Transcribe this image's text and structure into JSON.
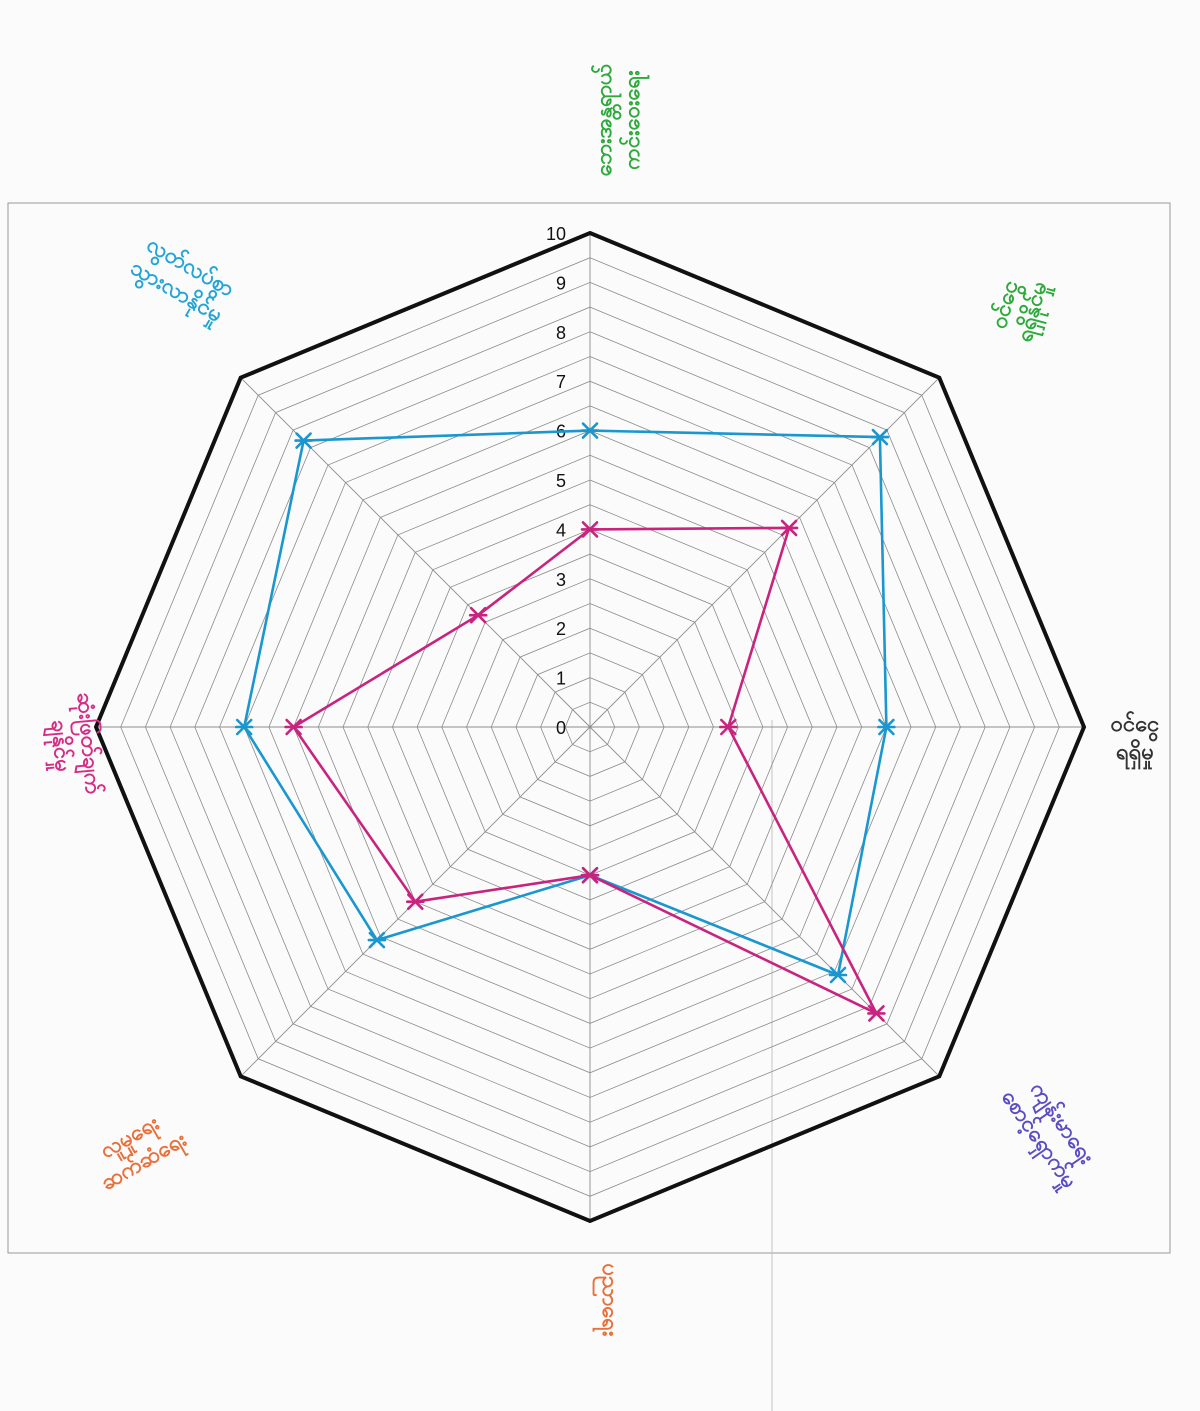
{
  "chart_data": {
    "type": "radar",
    "title": "",
    "r_range": [
      0,
      10
    ],
    "ticks": [
      "0",
      "1",
      "2",
      "3",
      "4",
      "5",
      "6",
      "7",
      "8",
      "9",
      "10"
    ],
    "grid": true,
    "axes": [
      {
        "label": "ဘေးအန္တရာယ် ကင်းဝေးရေး",
        "color": "#2eaa3c"
      },
      {
        "label": "ဝင်ငွေ ရရှိနိုင်မှု",
        "color": "#2eaa3c"
      },
      {
        "label": "ဝင်ငွေ ရရှိမှု",
        "color": "#333333"
      },
      {
        "label": "ကျန်းမာရေး စောင့်ရှောက်မှု",
        "color": "#5b4ec4"
      },
      {
        "label": "ပညာရေး",
        "color": "#e8703a"
      },
      {
        "label": "လူမှုရေး ဆက်ဆံရေး",
        "color": "#e8703a"
      },
      {
        "label": "ဆုံးဖြတ်ချက် ချနိုင်မှု",
        "color": "#d62c86"
      },
      {
        "label": "လွတ်လပ်စွာ သွားလာနိုင်မှု",
        "color": "#23a4d6"
      }
    ],
    "series": [
      {
        "color": "#1a97cf",
        "values": [
          6.0,
          8.3,
          6.0,
          7.1,
          3.0,
          6.1,
          7.0,
          8.2
        ]
      },
      {
        "color": "#c8237f",
        "values": [
          4.0,
          5.7,
          2.8,
          8.2,
          3.0,
          5.0,
          6.0,
          3.2
        ]
      }
    ]
  }
}
